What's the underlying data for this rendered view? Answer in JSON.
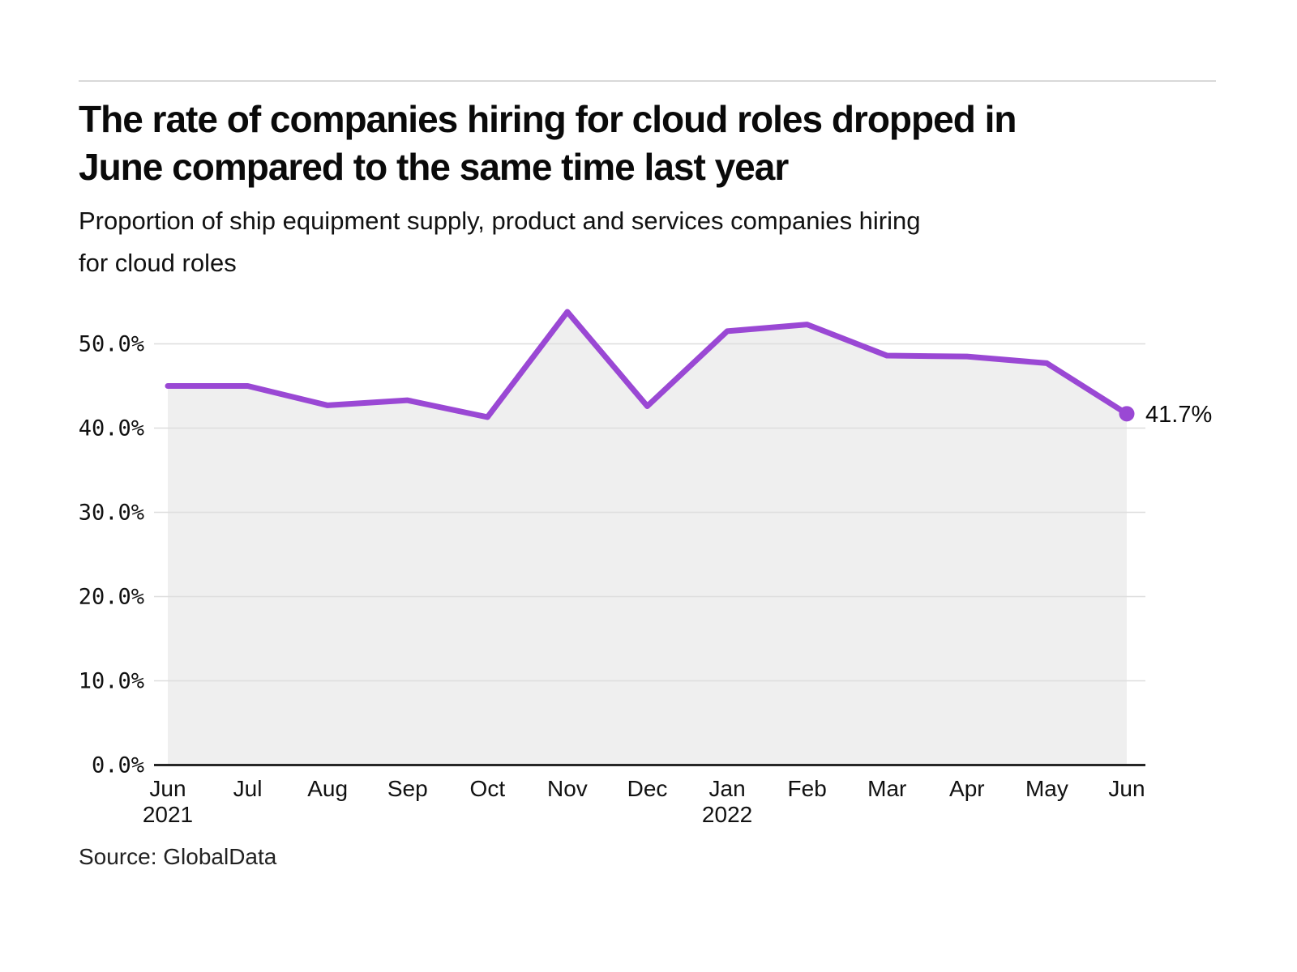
{
  "header": {
    "title_lines": [
      "The rate of companies hiring for cloud roles dropped in",
      "June compared to the same time last year"
    ],
    "subtitle_lines": [
      "Proportion of ship equipment supply, product and services companies hiring",
      "for cloud roles"
    ]
  },
  "footer": {
    "source": "Source: GlobalData"
  },
  "chart_data": {
    "type": "line",
    "title": "The rate of companies hiring for cloud roles dropped in June compared to the same time last year",
    "subtitle": "Proportion of ship equipment supply, product and services companies hiring for cloud roles",
    "categories": [
      {
        "month": "Jun",
        "year": "2021"
      },
      {
        "month": "Jul"
      },
      {
        "month": "Aug"
      },
      {
        "month": "Sep"
      },
      {
        "month": "Oct"
      },
      {
        "month": "Nov"
      },
      {
        "month": "Dec"
      },
      {
        "month": "Jan",
        "year": "2022"
      },
      {
        "month": "Feb"
      },
      {
        "month": "Mar"
      },
      {
        "month": "Apr"
      },
      {
        "month": "May"
      },
      {
        "month": "Jun"
      }
    ],
    "values": [
      45.0,
      45.0,
      42.7,
      43.3,
      41.3,
      53.8,
      42.6,
      51.5,
      52.3,
      48.6,
      48.5,
      47.7,
      41.7
    ],
    "end_label": "41.7%",
    "y_ticks": [
      "0.0%",
      "10.0%",
      "20.0%",
      "30.0%",
      "40.0%",
      "50.0%"
    ],
    "ylim": [
      0,
      55
    ],
    "grid": "horizontal",
    "legend": "none",
    "colors": {
      "line": "#9a48d4",
      "area_fill": "#efefef",
      "gridline": "#dedede",
      "axis": "#262626",
      "text": "#111111"
    }
  }
}
